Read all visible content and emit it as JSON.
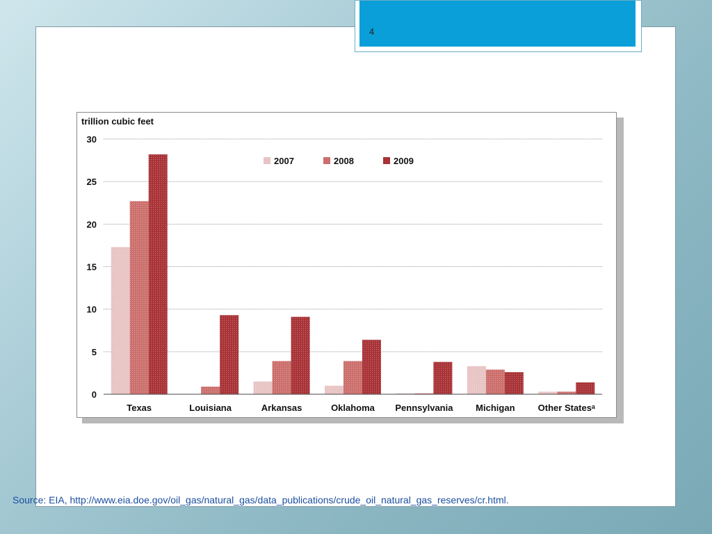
{
  "slide": {
    "page_number": "4",
    "source_text": "Source: EIA,  http://www.eia.doe.gov/oil_gas/natural_gas/data_publications/crude_oil_natural_gas_reserves/cr.html."
  },
  "colors": {
    "accent_blue": "#0a9fd8",
    "series_2007": "#e8c4c4",
    "series_2008": "#cc6f6c",
    "series_2009": "#a83236"
  },
  "chart_data": {
    "type": "bar",
    "title": "",
    "ylabel": "trillion cubic feet",
    "xlabel": "",
    "ylim": [
      0,
      30
    ],
    "yticks": [
      0,
      5,
      10,
      15,
      20,
      25,
      30
    ],
    "grid": true,
    "legend_placement": "top-center",
    "categories": [
      "Texas",
      "Louisiana",
      "Arkansas",
      "Oklahoma",
      "Pennsylvania",
      "Michigan",
      "Other Statesᵃ"
    ],
    "series": [
      {
        "name": "2007",
        "color": "#e8c4c4",
        "values": [
          17.3,
          0.0,
          1.5,
          1.0,
          0.1,
          3.3,
          0.3
        ]
      },
      {
        "name": "2008",
        "color": "#cc6f6c",
        "values": [
          22.7,
          0.9,
          3.9,
          3.9,
          0.1,
          2.9,
          0.3
        ]
      },
      {
        "name": "2009",
        "color": "#a83236",
        "values": [
          28.2,
          9.3,
          9.1,
          6.4,
          3.8,
          2.6,
          1.4
        ]
      }
    ]
  }
}
